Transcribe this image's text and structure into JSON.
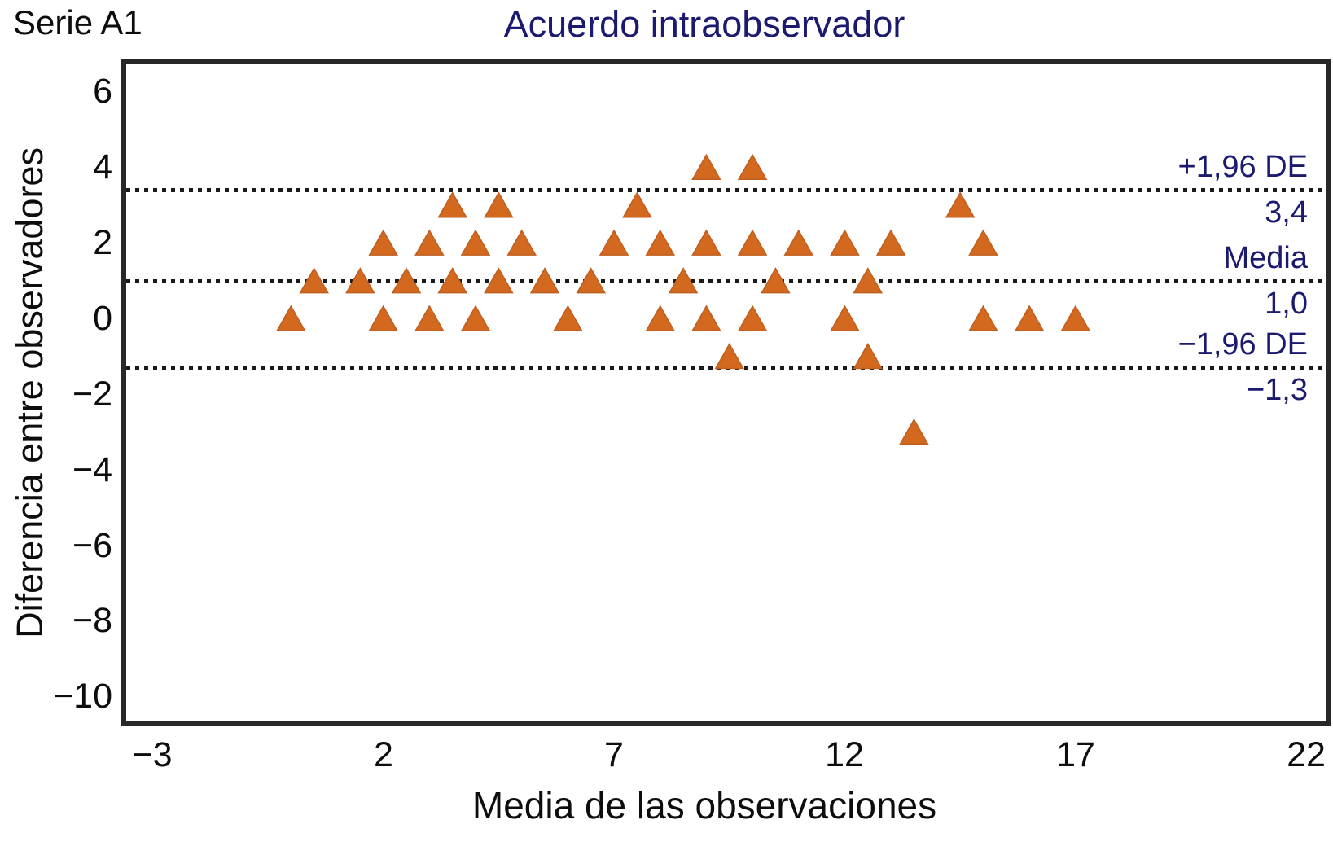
{
  "chart_data": {
    "type": "scatter",
    "title": "Acuerdo intraobservador",
    "series_label": "Serie A1",
    "xlabel": "Media de las observaciones",
    "ylabel": "Diferencia entre observadores",
    "marker": "triangle-up",
    "marker_color": "#d2691e",
    "marker_edge_color": "#c05e20",
    "reference_line_color": "#1a1a1a",
    "annotation_color": "#1b1a6f",
    "grid": false,
    "xlim": [
      -3.57,
      22.42
    ],
    "ylim": [
      -10.66,
      6.72
    ],
    "x_ticks": [
      {
        "value": -3,
        "label": "−3"
      },
      {
        "value": 2,
        "label": "2"
      },
      {
        "value": 7,
        "label": "7"
      },
      {
        "value": 12,
        "label": "12"
      },
      {
        "value": 17,
        "label": "17"
      },
      {
        "value": 22,
        "label": "22"
      }
    ],
    "y_ticks": [
      {
        "value": 6,
        "label": "6"
      },
      {
        "value": 4,
        "label": "4"
      },
      {
        "value": 2,
        "label": "2"
      },
      {
        "value": 0,
        "label": "0"
      },
      {
        "value": -2,
        "label": "−2"
      },
      {
        "value": -4,
        "label": "−4"
      },
      {
        "value": -6,
        "label": "−6"
      },
      {
        "value": -8,
        "label": "−8"
      },
      {
        "value": -10,
        "label": "−10"
      }
    ],
    "reference_lines": [
      {
        "value": 3.4,
        "label": "+1,96 DE",
        "value_label": "3,4"
      },
      {
        "value": 1.0,
        "label": "Media",
        "value_label": "1,0"
      },
      {
        "value": -1.3,
        "label": "−1,96 DE",
        "value_label": "−1,3"
      }
    ],
    "series": [
      {
        "name": "Serie A1",
        "points": [
          [
            9,
            4
          ],
          [
            10,
            4
          ],
          [
            3.5,
            3
          ],
          [
            4.5,
            3
          ],
          [
            7.5,
            3
          ],
          [
            14.5,
            3
          ],
          [
            2,
            2
          ],
          [
            3,
            2
          ],
          [
            4,
            2
          ],
          [
            5,
            2
          ],
          [
            7,
            2
          ],
          [
            8,
            2
          ],
          [
            9,
            2
          ],
          [
            10,
            2
          ],
          [
            11,
            2
          ],
          [
            12,
            2
          ],
          [
            13,
            2
          ],
          [
            15,
            2
          ],
          [
            0.5,
            1
          ],
          [
            1.5,
            1
          ],
          [
            2.5,
            1
          ],
          [
            3.5,
            1
          ],
          [
            4.5,
            1
          ],
          [
            5.5,
            1
          ],
          [
            6.5,
            1
          ],
          [
            8.5,
            1
          ],
          [
            10.5,
            1
          ],
          [
            12.5,
            1
          ],
          [
            0,
            0
          ],
          [
            2,
            0
          ],
          [
            3,
            0
          ],
          [
            4,
            0
          ],
          [
            6,
            0
          ],
          [
            8,
            0
          ],
          [
            9,
            0
          ],
          [
            10,
            0
          ],
          [
            12,
            0
          ],
          [
            15,
            0
          ],
          [
            16,
            0
          ],
          [
            17,
            0
          ],
          [
            9.5,
            -1
          ],
          [
            12.5,
            -1
          ],
          [
            13.5,
            -3
          ]
        ]
      }
    ]
  }
}
